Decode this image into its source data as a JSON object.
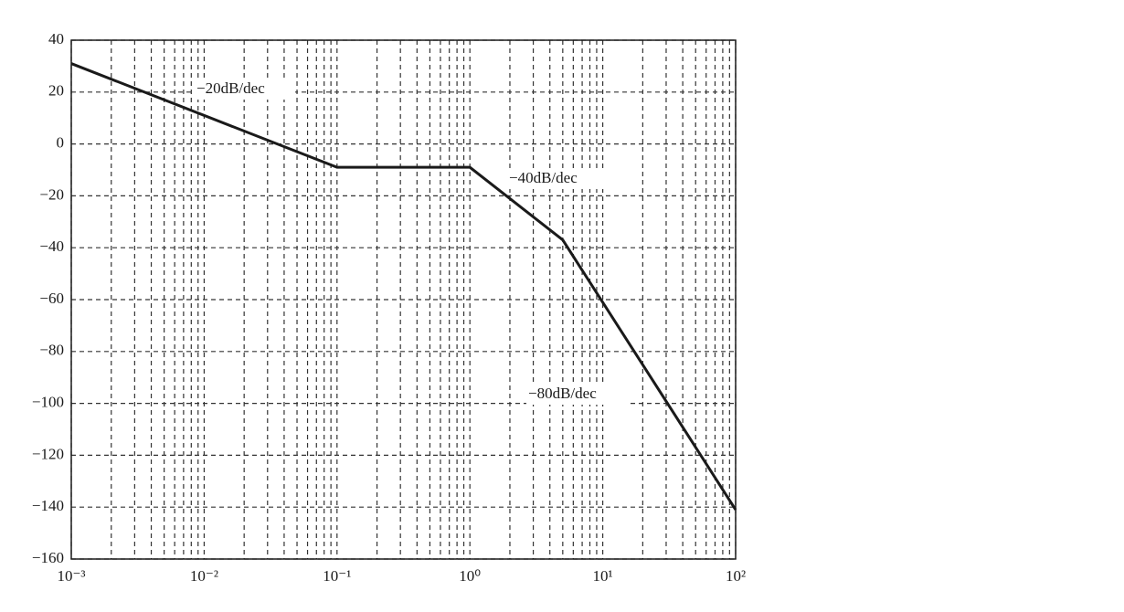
{
  "chart_data": {
    "type": "line",
    "log_x": true,
    "grid": true,
    "minor_grid": true,
    "color": "#1a1a1a",
    "x": [
      0.001,
      0.1,
      1,
      5,
      100
    ],
    "values": [
      31,
      -9,
      -9,
      -37,
      -141
    ],
    "xlim": [
      0.001,
      100
    ],
    "xticks": [
      {
        "value": 0.001,
        "label": "10⁻³"
      },
      {
        "value": 0.01,
        "label": "10⁻²"
      },
      {
        "value": 0.1,
        "label": "10⁻¹"
      },
      {
        "value": 1,
        "label": "10⁰"
      },
      {
        "value": 10,
        "label": "10¹"
      },
      {
        "value": 100,
        "label": "10²"
      }
    ],
    "ylim": [
      -160,
      40
    ],
    "yticks": [
      40,
      20,
      0,
      {
        "value": -20,
        "label": "−20"
      },
      {
        "value": -40,
        "label": "−40"
      },
      {
        "value": -60,
        "label": "−60"
      },
      {
        "value": -80,
        "label": "−80"
      },
      {
        "value": -100,
        "label": "−100"
      },
      {
        "value": -120,
        "label": "−120"
      },
      {
        "value": -140,
        "label": "−140"
      },
      {
        "value": -160,
        "label": "−160"
      }
    ],
    "annotations": [
      "−20dB/dec",
      "−40dB/dec",
      "−80dB/dec"
    ]
  }
}
